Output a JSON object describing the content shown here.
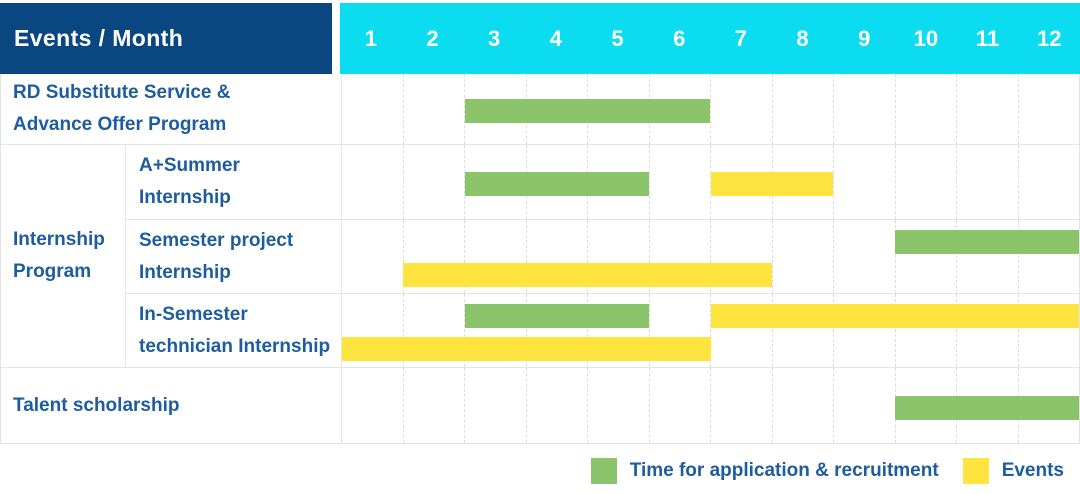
{
  "header": {
    "title": "Events / Month"
  },
  "theme": {
    "navy": "#0a4781",
    "cyan": "#0bdcef",
    "text_blue": "#1d5c9e",
    "grid": "#e4e4e4",
    "white": "#ffffff"
  },
  "chart_data": {
    "type": "gantt",
    "title": "Events / Month",
    "x_unit": "month",
    "months": [
      "1",
      "2",
      "3",
      "4",
      "5",
      "6",
      "7",
      "8",
      "9",
      "10",
      "11",
      "12"
    ],
    "colors": {
      "application": "#8bc46a",
      "events": "#ffe33e"
    },
    "rows": [
      {
        "group": "",
        "label_lines": [
          "RD Substitute Service &",
          "Advance Offer Program"
        ],
        "lines": [
          [
            {
              "type": "application",
              "start": 3,
              "end": 6
            }
          ]
        ]
      },
      {
        "group": "Internship Program",
        "label_lines": [
          "A+Summer",
          "Internship"
        ],
        "lines": [
          [
            {
              "type": "application",
              "start": 3,
              "end": 5
            },
            {
              "type": "events",
              "start": 7,
              "end": 8
            }
          ]
        ]
      },
      {
        "group": "Internship Program",
        "label_lines": [
          "Semester project",
          "Internship"
        ],
        "lines": [
          [
            {
              "type": "application",
              "start": 10,
              "end": 12
            }
          ],
          [
            {
              "type": "events",
              "start": 2,
              "end": 7
            }
          ]
        ]
      },
      {
        "group": "Internship Program",
        "label_lines": [
          "In-Semester",
          "technician Internship"
        ],
        "lines": [
          [
            {
              "type": "application",
              "start": 3,
              "end": 5
            },
            {
              "type": "events",
              "start": 7,
              "end": 12
            }
          ],
          [
            {
              "type": "events",
              "start": 1,
              "end": 6
            }
          ]
        ]
      },
      {
        "group": "",
        "label_lines": [
          "Talent scholarship"
        ],
        "lines": [
          [
            {
              "type": "application",
              "start": 10,
              "end": 12
            }
          ]
        ]
      }
    ],
    "legend": [
      {
        "type": "application",
        "label": "Time for application & recruitment"
      },
      {
        "type": "events",
        "label": "Events"
      }
    ]
  }
}
